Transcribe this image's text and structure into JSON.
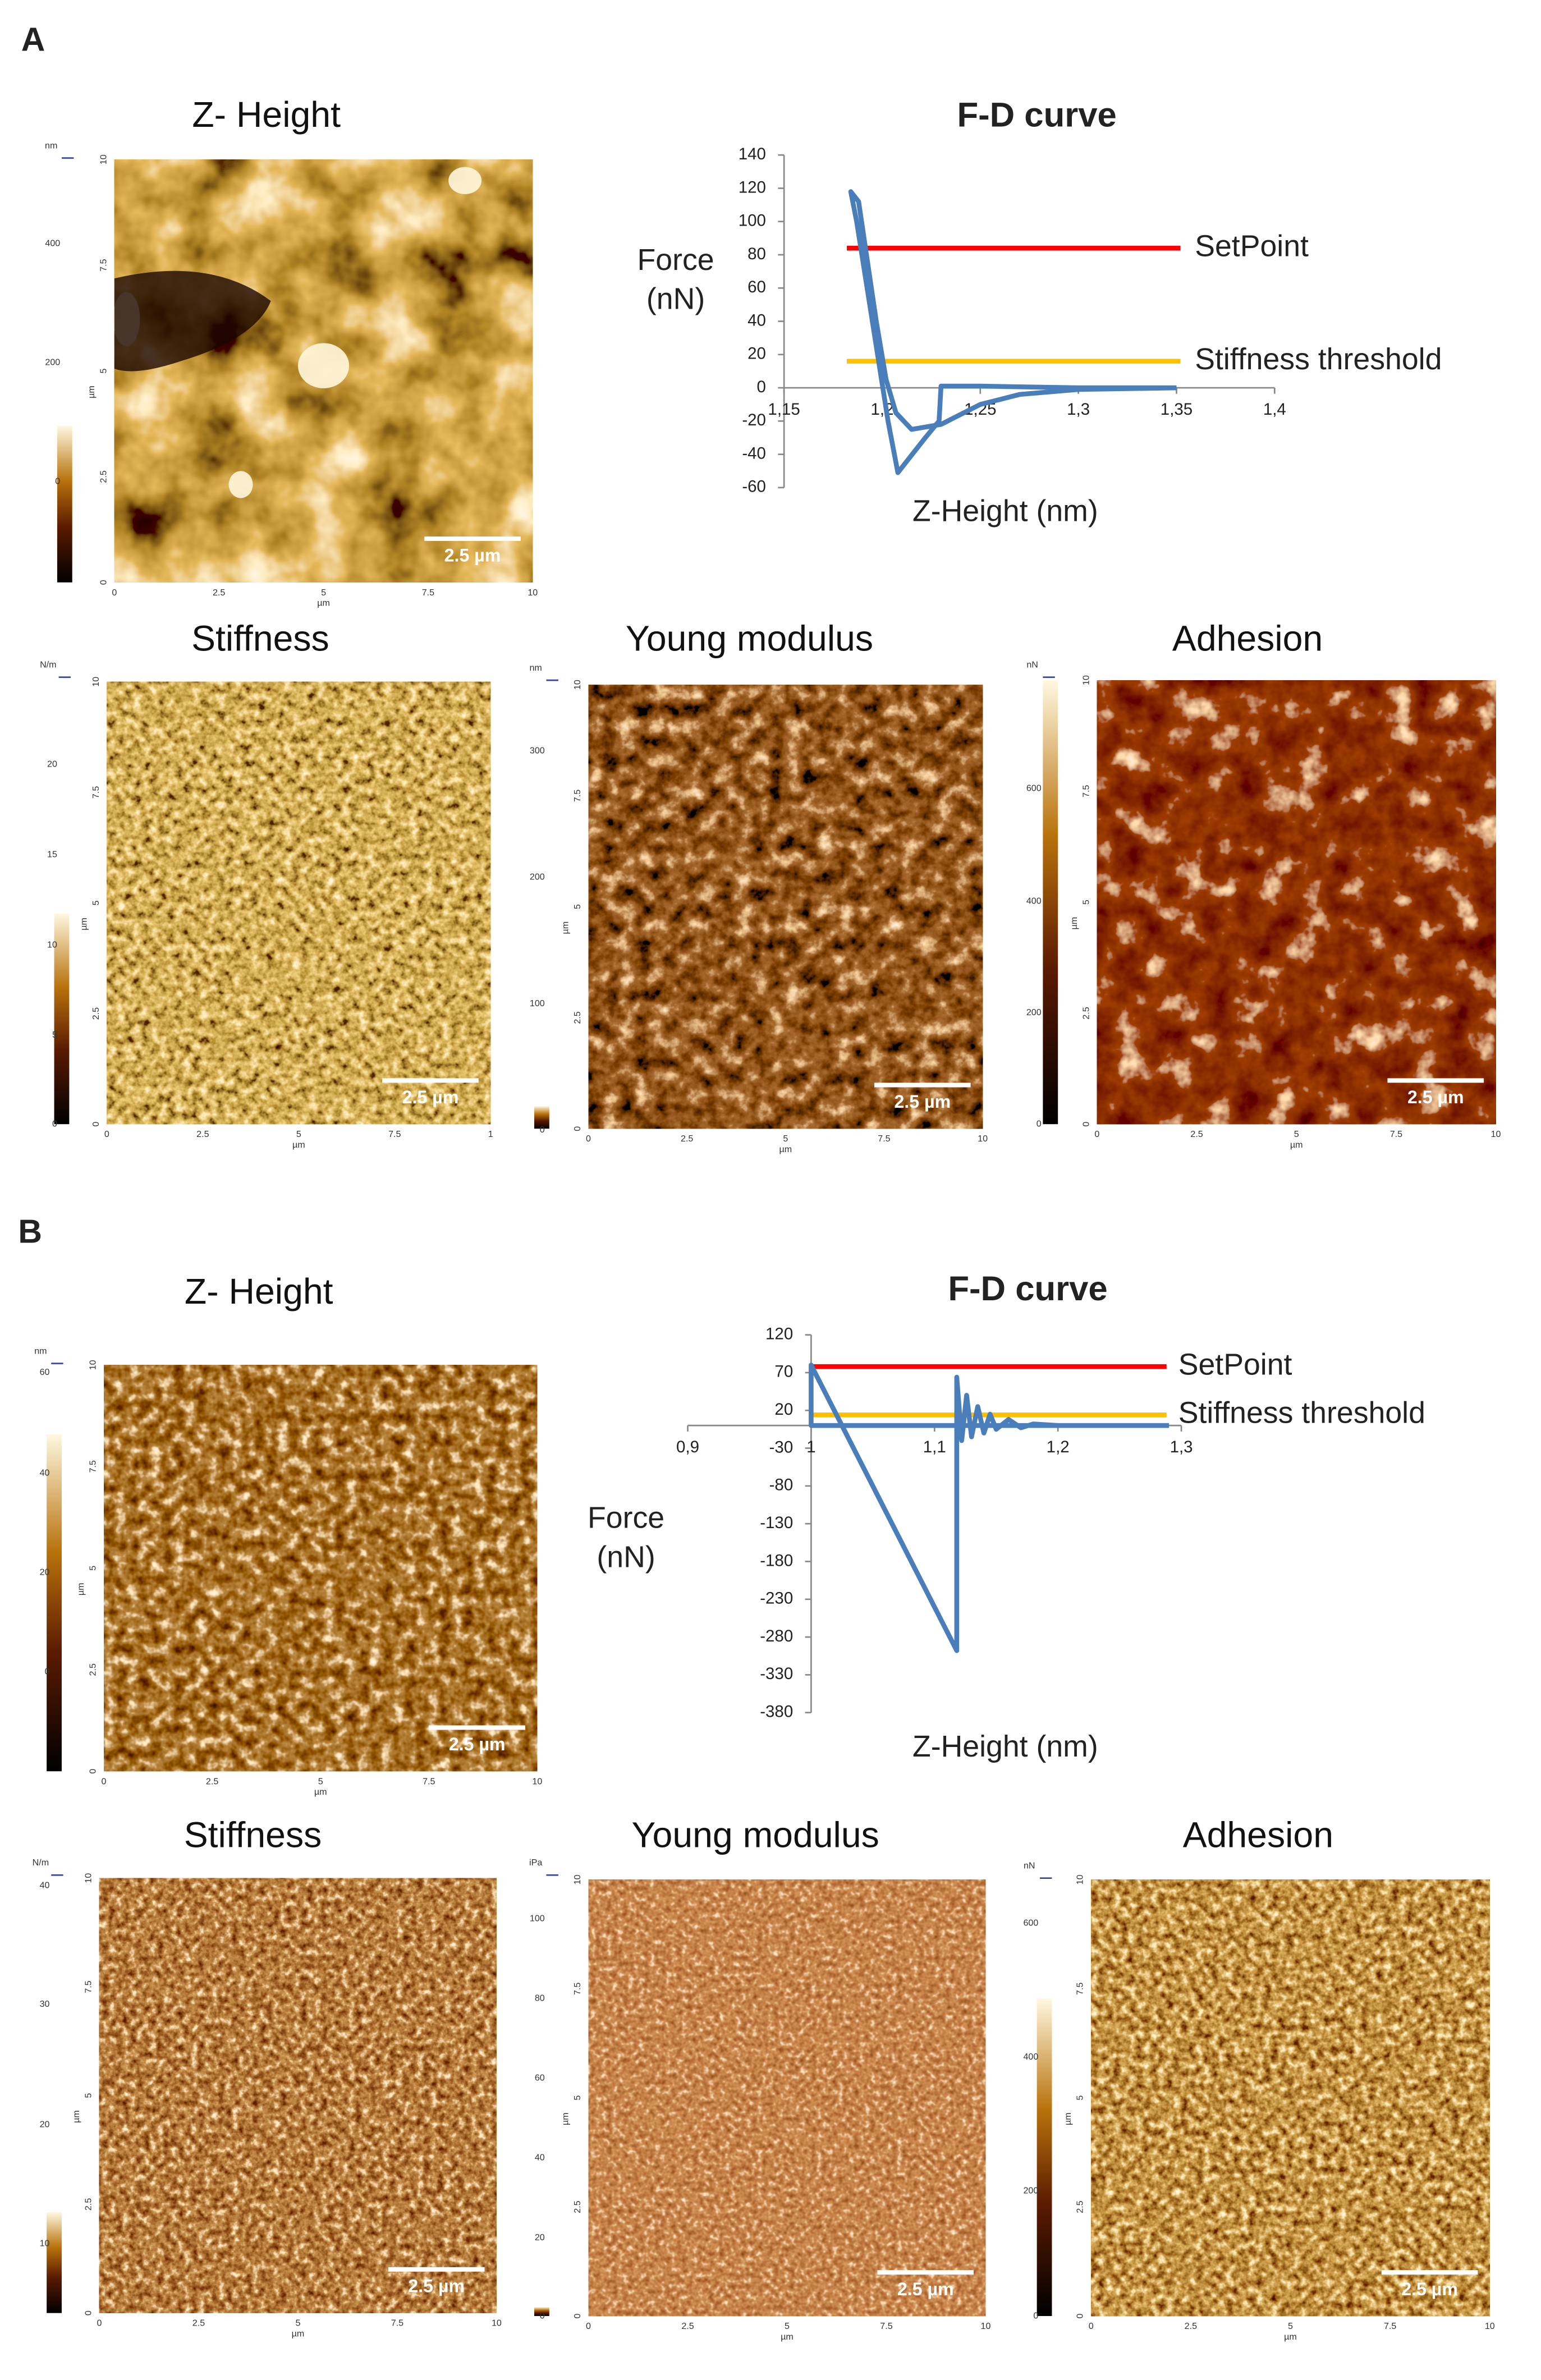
{
  "figure": {
    "panels": [
      {
        "label": "A",
        "images": [
          {
            "title": "Z- Height",
            "colorbar_unit": "nm",
            "colorbar_ticks": [
              "400",
              "200",
              "0"
            ],
            "y_ticks": [
              "10",
              "7.5",
              "5",
              "2.5",
              "0"
            ],
            "x_ticks": [
              "0",
              "2.5",
              "5",
              "7.5",
              "10"
            ],
            "axis_unit": "µm",
            "scale_bar": "2.5 µm"
          },
          {
            "title": "Stiffness",
            "colorbar_unit": "N/m",
            "colorbar_ticks": [
              "20",
              "15",
              "10",
              "5",
              "0"
            ],
            "y_ticks": [
              "10",
              "7.5",
              "5",
              "2.5",
              "0"
            ],
            "x_ticks": [
              "0",
              "2.5",
              "5",
              "7.5",
              "1"
            ],
            "axis_unit": "µm",
            "scale_bar": "2.5 µm"
          },
          {
            "title": "Young modulus",
            "colorbar_unit": "nm",
            "colorbar_ticks": [
              "300",
              "200",
              "100",
              "0"
            ],
            "y_ticks": [
              "10",
              "7.5",
              "5",
              "2.5",
              "0"
            ],
            "x_ticks": [
              "0",
              "2.5",
              "5",
              "7.5",
              "10"
            ],
            "axis_unit": "µm",
            "scale_bar": "2.5 µm"
          },
          {
            "title": "Adhesion",
            "colorbar_unit": "nN",
            "colorbar_ticks": [
              "600",
              "400",
              "200",
              "0"
            ],
            "y_ticks": [
              "10",
              "7.5",
              "5",
              "2.5",
              "0"
            ],
            "x_ticks": [
              "0",
              "2.5",
              "5",
              "7.5",
              "10"
            ],
            "axis_unit": "µm",
            "scale_bar": "2.5 µm"
          }
        ]
      },
      {
        "label": "B",
        "images": [
          {
            "title": "Z- Height",
            "colorbar_unit": "nm",
            "colorbar_ticks": [
              "60",
              "40",
              "20",
              "0"
            ],
            "y_ticks": [
              "10",
              "7.5",
              "5",
              "2.5",
              "0"
            ],
            "x_ticks": [
              "0",
              "2.5",
              "5",
              "7.5",
              "10"
            ],
            "axis_unit": "µm",
            "scale_bar": "2.5 µm"
          },
          {
            "title": "Stiffness",
            "colorbar_unit": "N/m",
            "colorbar_ticks": [
              "40",
              "30",
              "20",
              "10"
            ],
            "y_ticks": [
              "10",
              "7.5",
              "5",
              "2.5",
              "0"
            ],
            "x_ticks": [
              "0",
              "2.5",
              "5",
              "7.5",
              "10"
            ],
            "axis_unit": "µm",
            "scale_bar": "2.5 µm"
          },
          {
            "title": "Young modulus",
            "colorbar_unit": "iPa",
            "colorbar_ticks": [
              "100",
              "80",
              "60",
              "40",
              "20",
              "0"
            ],
            "y_ticks": [
              "10",
              "7.5",
              "5",
              "2.5",
              "0"
            ],
            "x_ticks": [
              "0",
              "2.5",
              "5",
              "7.5",
              "10"
            ],
            "axis_unit": "µm",
            "scale_bar": "2.5 µm"
          },
          {
            "title": "Adhesion",
            "colorbar_unit": "nN",
            "colorbar_ticks": [
              "600",
              "400",
              "200",
              "0"
            ],
            "y_ticks": [
              "10",
              "7.5",
              "5",
              "2.5",
              "0"
            ],
            "x_ticks": [
              "0",
              "2.5",
              "5",
              "7.5",
              "10"
            ],
            "axis_unit": "µm",
            "scale_bar": "2.5 µm"
          }
        ]
      }
    ]
  },
  "chart_data": [
    {
      "type": "line",
      "title": "F-D curve",
      "ylabel": [
        "Force",
        "(nN)"
      ],
      "xlabel": "Z-Height (nm)",
      "xlim": [
        1.15,
        1.4
      ],
      "ylim": [
        -60,
        140
      ],
      "yaxis_at": 1.15,
      "xaxis_at": 0,
      "xticks": [
        {
          "value": 1.15,
          "label": "1,15"
        },
        {
          "value": 1.2,
          "label": "1,2"
        },
        {
          "value": 1.25,
          "label": "1,25"
        },
        {
          "value": 1.3,
          "label": "1,3"
        },
        {
          "value": 1.35,
          "label": "1,35"
        },
        {
          "value": 1.4,
          "label": "1,4"
        }
      ],
      "yticks": [
        140,
        120,
        100,
        80,
        60,
        40,
        20,
        0,
        -20,
        -40,
        -60
      ],
      "series": [
        {
          "name": "SetPoint",
          "color": "#ff0000",
          "x": [
            1.182,
            1.352
          ],
          "values": [
            84,
            84
          ]
        },
        {
          "name": "Stiffness threshold",
          "color": "#ffc000",
          "x": [
            1.182,
            1.352
          ],
          "values": [
            16,
            16
          ]
        },
        {
          "color": "#4a7ebb",
          "x": [
            1.35,
            1.3,
            1.25,
            1.23,
            1.229,
            1.222,
            1.212,
            1.208,
            1.203,
            1.195,
            1.187,
            1.184,
            1.188,
            1.192,
            1.197,
            1.202,
            1.207,
            1.215,
            1.23,
            1.25,
            1.27,
            1.3,
            1.35
          ],
          "values": [
            0,
            0,
            1,
            1,
            -20,
            -30,
            -45,
            -51,
            -20,
            40,
            100,
            118,
            112,
            80,
            40,
            5,
            -15,
            -25,
            -22,
            -10,
            -4,
            -1,
            0
          ]
        }
      ]
    },
    {
      "type": "line",
      "title": "F-D curve",
      "ylabel": [
        "Force",
        "(nN)"
      ],
      "xlabel": "Z-Height (nm)",
      "xlim": [
        0.9,
        1.3
      ],
      "ylim": [
        -380,
        120
      ],
      "yaxis_at": 1,
      "xaxis_at": 0,
      "xticks": [
        {
          "value": 0.9,
          "label": "0,9"
        },
        1,
        {
          "value": 1.1,
          "label": "1,1"
        },
        {
          "value": 1.2,
          "label": "1,2"
        },
        {
          "value": 1.3,
          "label": "1,3"
        }
      ],
      "yticks": [
        120,
        70,
        20,
        -30,
        -80,
        -130,
        -180,
        -230,
        -280,
        -330,
        -380
      ],
      "series": [
        {
          "name": "SetPoint",
          "color": "#ff0000",
          "x": [
            1.0,
            1.288
          ],
          "values": [
            78,
            78
          ]
        },
        {
          "name": "Stiffness threshold",
          "color": "#ffc000",
          "x": [
            1.0,
            1.288
          ],
          "values": [
            14,
            14
          ]
        },
        {
          "color": "#4a7ebb",
          "x": [
            1.29,
            1.2,
            1.0,
            1.0,
            1.118,
            1.118,
            1.122,
            1.126,
            1.13,
            1.135,
            1.14,
            1.145,
            1.15,
            1.16,
            1.17,
            1.18,
            1.2,
            1.29
          ],
          "values": [
            0,
            0,
            0,
            80,
            -298,
            64,
            -20,
            40,
            -15,
            25,
            -10,
            15,
            -5,
            8,
            -3,
            2,
            0,
            0
          ]
        }
      ]
    }
  ]
}
